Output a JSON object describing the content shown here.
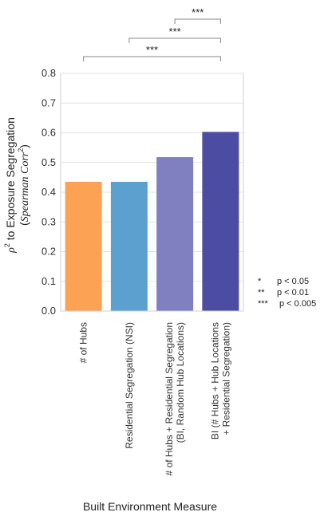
{
  "chart_data": {
    "type": "bar",
    "categories": [
      "# of Hubs",
      "Residential Segregation (NSI)",
      "# of Hubs + Residential Segregation (BI, Random Hub Locations)",
      "BI (# Hubs + Hub Locations + Residential Segregation)"
    ],
    "category_lines": [
      [
        "# of Hubs"
      ],
      [
        "Residential Segregation (NSI)"
      ],
      [
        "# of Hubs + Residential Segregation",
        "(BI, Random Hub Locations)"
      ],
      [
        "BI (# Hubs + Hub Locations",
        "+ Residential Segregation)"
      ]
    ],
    "values": [
      0.435,
      0.435,
      0.518,
      0.603
    ],
    "colors": [
      "#fca254",
      "#5ca0cf",
      "#8080c0",
      "#4d4ca3"
    ],
    "ylim": [
      0,
      0.8
    ],
    "yticks": [
      "0.0",
      "0.1",
      "0.2",
      "0.3",
      "0.4",
      "0.5",
      "0.6",
      "0.7",
      "0.8"
    ],
    "grid": true,
    "xlabel": "Built Environment Measure",
    "ylabel_line1": "to Exposure Segregation",
    "ylabel_rho": "ρ",
    "ylabel_sup": "2",
    "ylabel_line2_open": "(",
    "ylabel_line2_italic": "Spearman Corr",
    "ylabel_line2_close": ")",
    "significance": [
      {
        "from": 0,
        "to": 3,
        "label": "***"
      },
      {
        "from": 1,
        "to": 3,
        "label": "***"
      },
      {
        "from": 2,
        "to": 3,
        "label": "***"
      }
    ],
    "legend": [
      {
        "stars": "*",
        "text": "p < 0.05"
      },
      {
        "stars": "**",
        "text": "p < 0.01"
      },
      {
        "stars": "***",
        "text": "p < 0.005"
      }
    ]
  }
}
